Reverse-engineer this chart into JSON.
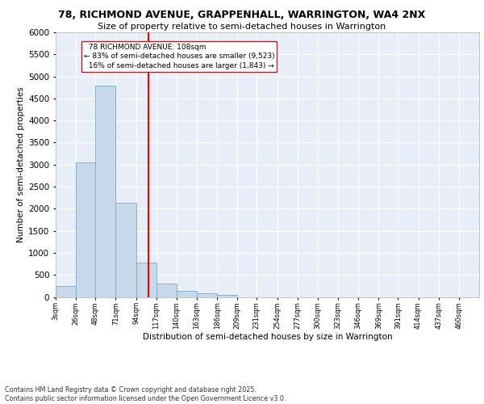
{
  "title1": "78, RICHMOND AVENUE, GRAPPENHALL, WARRINGTON, WA4 2NX",
  "title2": "Size of property relative to semi-detached houses in Warrington",
  "xlabel": "Distribution of semi-detached houses by size in Warrington",
  "ylabel": "Number of semi-detached properties",
  "footnote": "Contains HM Land Registry data © Crown copyright and database right 2025.\nContains public sector information licensed under the Open Government Licence v3.0.",
  "bin_labels": [
    "3sqm",
    "26sqm",
    "48sqm",
    "71sqm",
    "94sqm",
    "117sqm",
    "140sqm",
    "163sqm",
    "186sqm",
    "209sqm",
    "231sqm",
    "254sqm",
    "277sqm",
    "300sqm",
    "323sqm",
    "346sqm",
    "369sqm",
    "391sqm",
    "414sqm",
    "437sqm",
    "460sqm"
  ],
  "bar_values": [
    250,
    3050,
    4800,
    2130,
    770,
    305,
    140,
    75,
    50,
    0,
    0,
    0,
    0,
    0,
    0,
    0,
    0,
    0,
    0,
    0
  ],
  "bar_color": "#c8d8eb",
  "bar_edge_color": "#7aaac8",
  "property_value": 108,
  "property_label": "78 RICHMOND AVENUE: 108sqm",
  "pct_smaller": 83,
  "count_smaller": 9523,
  "pct_larger": 16,
  "count_larger": 1843,
  "vline_color": "red",
  "ylim": [
    0,
    6000
  ],
  "yticks": [
    0,
    500,
    1000,
    1500,
    2000,
    2500,
    3000,
    3500,
    4000,
    4500,
    5000,
    5500,
    6000
  ],
  "bin_edges": [
    3,
    26,
    48,
    71,
    94,
    117,
    140,
    163,
    186,
    209,
    231,
    254,
    277,
    300,
    323,
    346,
    369,
    391,
    414,
    437,
    460
  ],
  "plot_bg_color": "#e8eef8",
  "fig_bg_color": "#ffffff"
}
